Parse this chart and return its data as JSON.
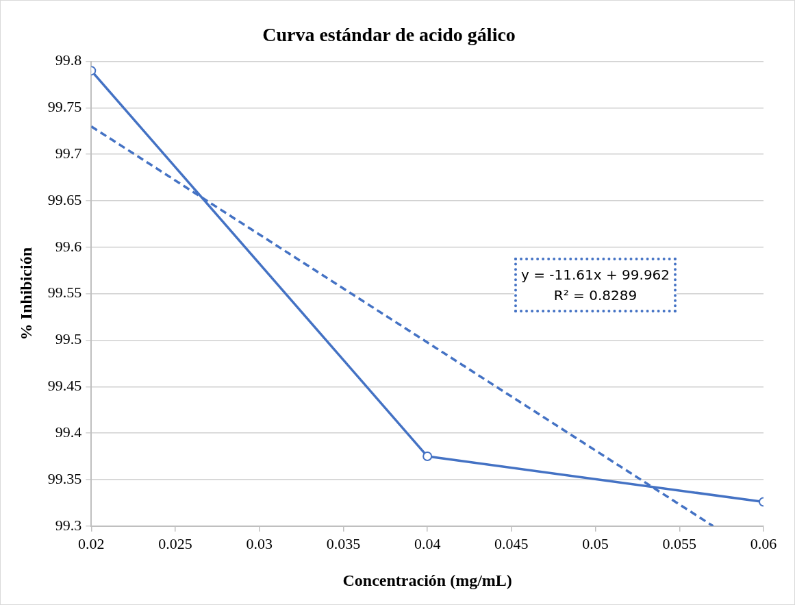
{
  "chart_data": {
    "type": "line",
    "title": "Curva estándar de acido gálico",
    "xlabel": "Concentración (mg/mL)",
    "ylabel": "% Inhibición",
    "series": [
      {
        "color": "#4472c4",
        "x": [
          0.02,
          0.04,
          0.06
        ],
        "values": [
          99.79,
          99.375,
          99.326
        ],
        "marker": "circle",
        "line_style": "solid"
      },
      {
        "color": "#4472c4",
        "x": [
          0.02,
          0.057
        ],
        "values": [
          99.73,
          99.3
        ],
        "marker": "none",
        "line_style": "dashed"
      }
    ],
    "annotations": [
      "y = -11.61x + 99.962",
      "R² = 0.8289"
    ],
    "xlim": [
      0.02,
      0.06
    ],
    "xticks": [
      0.02,
      0.025,
      0.03,
      0.035,
      0.04,
      0.045,
      0.05,
      0.055,
      0.06
    ],
    "ylim": [
      99.3,
      99.8
    ],
    "yticks": [
      99.3,
      99.35,
      99.4,
      99.45,
      99.5,
      99.55,
      99.6,
      99.65,
      99.7,
      99.75,
      99.8
    ],
    "grid": "y",
    "legend": false
  }
}
